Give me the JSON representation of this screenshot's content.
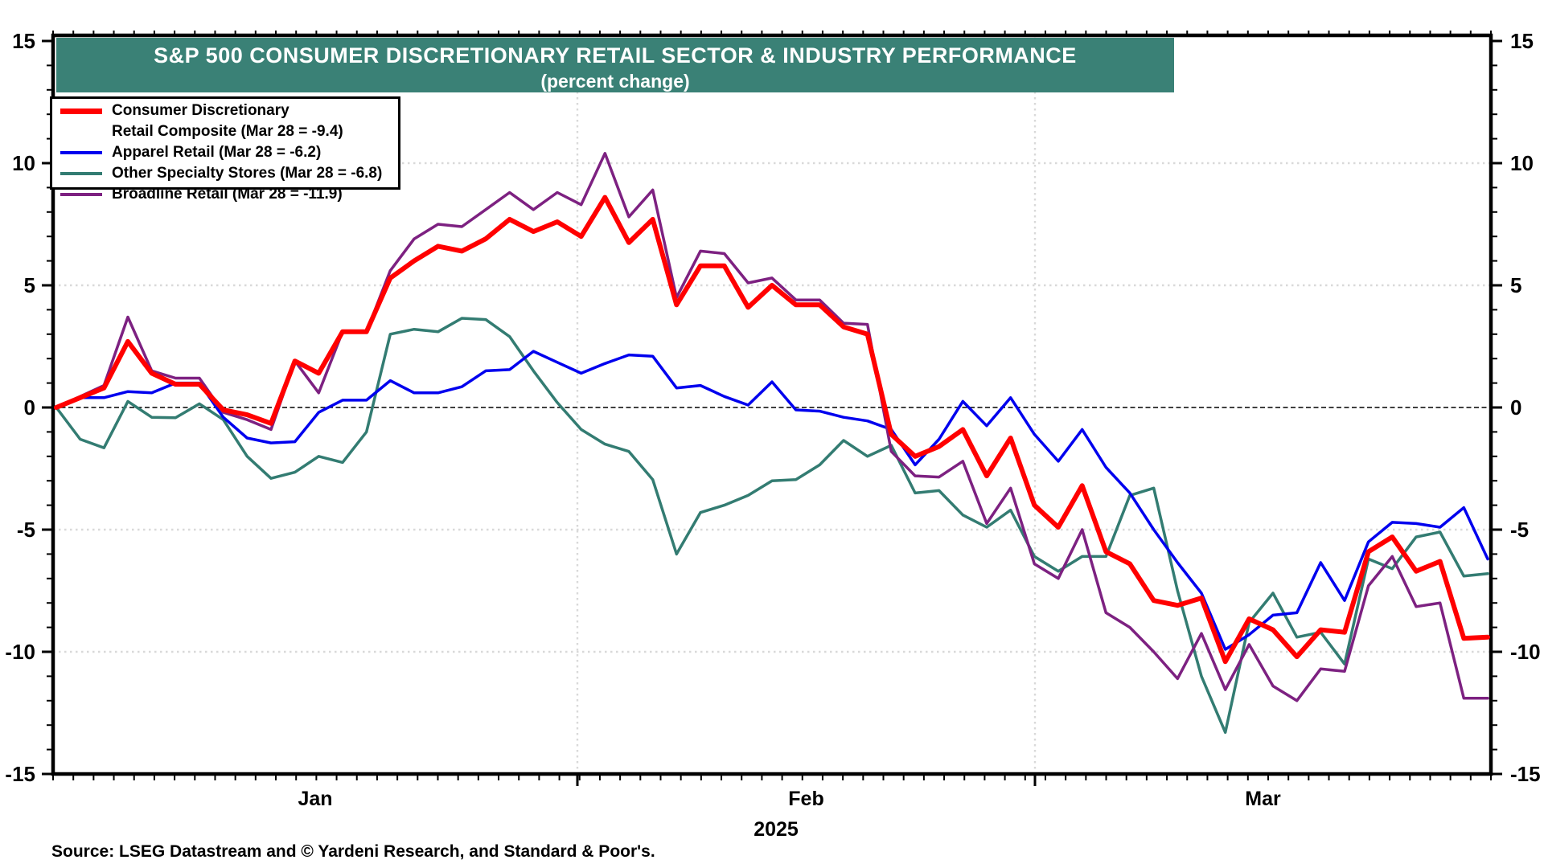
{
  "title": {
    "line1": "S&P 500 CONSUMER DISCRETIONARY RETAIL SECTOR & INDUSTRY PERFORMANCE",
    "line2": "(percent change)"
  },
  "source": "Source: LSEG Datastream and © Yardeni Research, and Standard & Poor's.",
  "axes": {
    "y_ticks": [
      15,
      10,
      5,
      0,
      -5,
      -10,
      -15
    ],
    "y_grid_dotted": [
      10,
      5,
      -5,
      -10
    ],
    "x_month_labels": [
      "Jan",
      "Feb",
      "Mar"
    ],
    "year_label": "2025"
  },
  "chart_data": {
    "type": "line",
    "title": "S&P 500 CONSUMER DISCRETIONARY RETAIL SECTOR & INDUSTRY PERFORMANCE (percent change)",
    "ylabel": "percent change",
    "ylim": [
      -15,
      15
    ],
    "grid": "dotted horizontal at -10,-5,5,10 and vertical at month boundaries; dashed zero line",
    "legend_position": "top-left",
    "x_dates": [
      "Dec 30",
      "Dec 31",
      "Jan 2",
      "Jan 3",
      "Jan 6",
      "Jan 7",
      "Jan 8",
      "Jan 10",
      "Jan 13",
      "Jan 14",
      "Jan 15",
      "Jan 16",
      "Jan 17",
      "Jan 21",
      "Jan 22",
      "Jan 23",
      "Jan 24",
      "Jan 27",
      "Jan 28",
      "Jan 29",
      "Jan 30",
      "Jan 31",
      "Feb 3",
      "Feb 4",
      "Feb 5",
      "Feb 6",
      "Feb 7",
      "Feb 10",
      "Feb 11",
      "Feb 12",
      "Feb 13",
      "Feb 14",
      "Feb 18",
      "Feb 19",
      "Feb 20",
      "Feb 21",
      "Feb 24",
      "Feb 25",
      "Feb 26",
      "Feb 27",
      "Feb 28",
      "Mar 3",
      "Mar 4",
      "Mar 5",
      "Mar 6",
      "Mar 7",
      "Mar 10",
      "Mar 11",
      "Mar 12",
      "Mar 13",
      "Mar 14",
      "Mar 17",
      "Mar 18",
      "Mar 19",
      "Mar 20",
      "Mar 21",
      "Mar 24",
      "Mar 25",
      "Mar 26",
      "Mar 27",
      "Mar 28"
    ],
    "series": [
      {
        "name": "Consumer Discretionary Retail Composite",
        "legend_line1": "Consumer Discretionary",
        "legend_line2": "Retail Composite (Mar 28 = -9.4)",
        "color": "#FF0000",
        "line_width": 6,
        "values": [
          0.0,
          0.4,
          0.8,
          2.7,
          1.4,
          0.95,
          0.95,
          -0.1,
          -0.3,
          -0.65,
          1.9,
          1.4,
          3.1,
          3.1,
          5.3,
          6.0,
          6.6,
          6.4,
          6.9,
          7.7,
          7.2,
          7.6,
          7.0,
          8.6,
          6.75,
          7.7,
          4.2,
          5.8,
          5.8,
          4.1,
          5.0,
          4.2,
          4.2,
          3.3,
          3.0,
          -1.1,
          -2.0,
          -1.6,
          -0.9,
          -2.8,
          -1.25,
          -4.0,
          -4.9,
          -3.2,
          -5.9,
          -6.4,
          -7.9,
          -8.1,
          -7.8,
          -10.4,
          -8.65,
          -9.1,
          -10.2,
          -9.1,
          -9.2,
          -5.9,
          -5.3,
          -6.7,
          -6.3,
          -9.45,
          -9.4
        ]
      },
      {
        "name": "Apparel Retail",
        "legend_line1": "Apparel Retail (Mar 28 = -6.2)",
        "color": "#0000EE",
        "line_width": 3.5,
        "values": [
          0.0,
          0.4,
          0.4,
          0.65,
          0.6,
          1.0,
          1.0,
          -0.4,
          -1.25,
          -1.45,
          -1.4,
          -0.2,
          0.3,
          0.3,
          1.1,
          0.6,
          0.6,
          0.85,
          1.5,
          1.55,
          2.3,
          1.85,
          1.4,
          1.8,
          2.15,
          2.1,
          0.8,
          0.9,
          0.45,
          0.1,
          1.05,
          -0.1,
          -0.15,
          -0.4,
          -0.55,
          -0.9,
          -2.35,
          -1.3,
          0.25,
          -0.75,
          0.4,
          -1.1,
          -2.2,
          -0.9,
          -2.45,
          -3.5,
          -5.0,
          -6.35,
          -7.6,
          -9.9,
          -9.3,
          -8.5,
          -8.4,
          -6.35,
          -7.9,
          -5.5,
          -4.7,
          -4.75,
          -4.9,
          -4.1,
          -6.2
        ]
      },
      {
        "name": "Other Specialty Stores",
        "legend_line1": "Other Specialty Stores (Mar 28 = -6.8)",
        "color": "#337C72",
        "line_width": 3.5,
        "values": [
          0.0,
          -1.3,
          -1.65,
          0.25,
          -0.4,
          -0.42,
          0.15,
          -0.5,
          -2.0,
          -2.9,
          -2.65,
          -2.0,
          -2.25,
          -1.0,
          3.0,
          3.2,
          3.1,
          3.65,
          3.6,
          2.9,
          1.5,
          0.2,
          -0.9,
          -1.5,
          -1.8,
          -2.95,
          -6.0,
          -4.3,
          -4.0,
          -3.6,
          -3.0,
          -2.95,
          -2.35,
          -1.35,
          -2.0,
          -1.55,
          -3.5,
          -3.4,
          -4.4,
          -4.9,
          -4.2,
          -6.1,
          -6.7,
          -6.1,
          -6.1,
          -3.6,
          -3.3,
          -7.5,
          -11.0,
          -13.3,
          -8.8,
          -7.6,
          -9.4,
          -9.2,
          -10.5,
          -6.2,
          -6.6,
          -5.3,
          -5.1,
          -6.9,
          -6.8
        ]
      },
      {
        "name": "Broadline Retail",
        "legend_line1": "Broadline Retail (Mar 28 = -11.9)",
        "color": "#7D2181",
        "line_width": 3.5,
        "values": [
          0.0,
          0.45,
          0.9,
          3.7,
          1.5,
          1.2,
          1.2,
          -0.2,
          -0.5,
          -0.9,
          1.9,
          0.6,
          3.1,
          3.1,
          5.6,
          6.9,
          7.5,
          7.4,
          8.1,
          8.8,
          8.1,
          8.8,
          8.3,
          10.4,
          7.8,
          8.9,
          4.5,
          6.4,
          6.3,
          5.1,
          5.3,
          4.4,
          4.4,
          3.45,
          3.4,
          -1.8,
          -2.8,
          -2.85,
          -2.2,
          -4.75,
          -3.3,
          -6.4,
          -7.0,
          -5.0,
          -8.4,
          -9.0,
          -10.0,
          -11.1,
          -9.25,
          -11.55,
          -9.7,
          -11.4,
          -12.0,
          -10.7,
          -10.8,
          -7.3,
          -6.1,
          -8.15,
          -8.0,
          -11.9,
          -11.9
        ]
      }
    ]
  }
}
